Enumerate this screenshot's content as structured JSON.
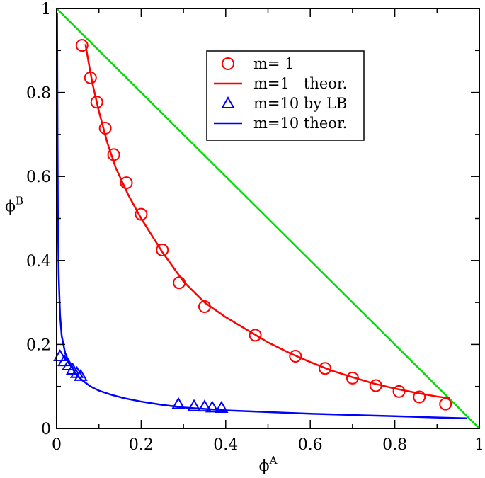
{
  "chart_data": {
    "type": "scatter",
    "title": "",
    "xlabel_base": "ϕ",
    "xlabel_sup": "A",
    "ylabel_base": "ϕ",
    "ylabel_sup": "B",
    "xlim": [
      0,
      1
    ],
    "ylim": [
      0,
      1
    ],
    "xticks": [
      0,
      0.2,
      0.4,
      0.6,
      0.8,
      1
    ],
    "yticks": [
      0,
      0.2,
      0.4,
      0.6,
      0.8,
      1
    ],
    "xtick_labels": [
      "0",
      "0.2",
      "0.4",
      "0.6",
      "0.8",
      "1"
    ],
    "ytick_labels": [
      "0",
      "0.2",
      "0.4",
      "0.6",
      "0.8",
      "1"
    ],
    "grid": false,
    "legend_position": "top-right",
    "colors": {
      "red": "#ff0000",
      "blue": "#0000ff",
      "green": "#00dd00"
    },
    "diagonal": {
      "x": [
        0,
        1
      ],
      "y": [
        1,
        0
      ]
    },
    "series": [
      {
        "name": "m= 1",
        "kind": "markers",
        "marker": "circle",
        "color": "#ff0000",
        "x": [
          0.06,
          0.08,
          0.095,
          0.115,
          0.135,
          0.165,
          0.2,
          0.25,
          0.29,
          0.35,
          0.47,
          0.565,
          0.635,
          0.7,
          0.755,
          0.81,
          0.858,
          0.92
        ],
        "y": [
          0.912,
          0.835,
          0.777,
          0.715,
          0.652,
          0.585,
          0.51,
          0.425,
          0.347,
          0.29,
          0.222,
          0.172,
          0.143,
          0.12,
          0.102,
          0.088,
          0.075,
          0.058
        ]
      },
      {
        "name": "m=1   theor.",
        "kind": "line",
        "color": "#ff0000",
        "x": [
          0.068,
          0.075,
          0.085,
          0.1,
          0.12,
          0.14,
          0.17,
          0.2,
          0.25,
          0.3,
          0.35,
          0.4,
          0.45,
          0.5,
          0.55,
          0.6,
          0.65,
          0.7,
          0.75,
          0.8,
          0.85,
          0.9,
          0.93
        ],
        "y": [
          0.915,
          0.875,
          0.82,
          0.755,
          0.68,
          0.62,
          0.555,
          0.5,
          0.42,
          0.35,
          0.3,
          0.265,
          0.235,
          0.205,
          0.18,
          0.158,
          0.138,
          0.122,
          0.107,
          0.095,
          0.085,
          0.076,
          0.072
        ]
      },
      {
        "name": "m=10 by LB",
        "kind": "markers",
        "marker": "triangle",
        "color": "#0000ff",
        "x": [
          0.008,
          0.018,
          0.028,
          0.038,
          0.048,
          0.057,
          0.288,
          0.325,
          0.35,
          0.368,
          0.39
        ],
        "y": [
          0.172,
          0.16,
          0.15,
          0.14,
          0.132,
          0.125,
          0.058,
          0.053,
          0.052,
          0.05,
          0.049
        ]
      },
      {
        "name": "m=10 theor.",
        "kind": "line",
        "color": "#0000ff",
        "x": [
          0.001,
          0.002,
          0.003,
          0.005,
          0.008,
          0.012,
          0.02,
          0.03,
          0.045,
          0.06,
          0.08,
          0.1,
          0.13,
          0.16,
          0.2,
          0.25,
          0.3,
          0.4,
          0.5,
          0.6,
          0.7,
          0.8,
          0.9,
          0.97
        ],
        "y": [
          0.99,
          0.7,
          0.5,
          0.36,
          0.27,
          0.22,
          0.18,
          0.155,
          0.13,
          0.115,
          0.1,
          0.09,
          0.08,
          0.072,
          0.064,
          0.056,
          0.05,
          0.043,
          0.039,
          0.035,
          0.032,
          0.029,
          0.026,
          0.024
        ]
      }
    ]
  }
}
